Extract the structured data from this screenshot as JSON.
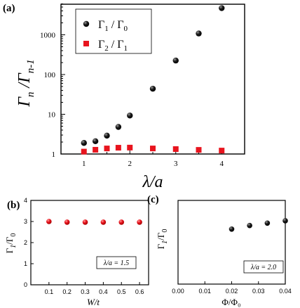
{
  "panel_labels": {
    "a": "(a)",
    "b": "(b)",
    "c": "(c)"
  },
  "colors": {
    "series1": "#000000",
    "series2": "#e8141e",
    "panel_b_marker": "#e8141e",
    "panel_c_marker": "#000000"
  },
  "chart_data": [
    {
      "type": "scatter",
      "id": "a",
      "xlabel": "λ/a",
      "ylabel": "Γn/Γn-1",
      "xscale": "linear",
      "yscale": "log",
      "xlim": [
        0.5,
        4.5
      ],
      "ylim": [
        1,
        6000
      ],
      "xticks": [
        "1",
        "2",
        "3",
        "4"
      ],
      "yticks": [
        "1",
        "10",
        "100",
        "1000"
      ],
      "legend_position": "top-left",
      "series": [
        {
          "name": "Γ1 / Γ0",
          "marker": "circle",
          "x": [
            1.0,
            1.25,
            1.5,
            1.75,
            2.0,
            2.5,
            3.0,
            3.5,
            4.0
          ],
          "y": [
            1.9,
            2.1,
            2.9,
            4.8,
            9.3,
            44,
            225,
            1080,
            4700
          ]
        },
        {
          "name": "Γ2 / Γ1",
          "marker": "square",
          "x": [
            1.0,
            1.25,
            1.5,
            1.75,
            2.0,
            2.5,
            3.0,
            3.5,
            4.0
          ],
          "y": [
            1.15,
            1.28,
            1.38,
            1.44,
            1.45,
            1.38,
            1.33,
            1.27,
            1.22
          ]
        }
      ]
    },
    {
      "type": "scatter",
      "id": "b",
      "xlabel": "W/t",
      "ylabel": "Γ1/Γ0",
      "xlim": [
        0,
        0.65
      ],
      "ylim": [
        0,
        4
      ],
      "xticks": [
        "0.1",
        "0.2",
        "0.3",
        "0.4",
        "0.5",
        "0.6"
      ],
      "yticks": [
        "0",
        "1",
        "2",
        "3",
        "4"
      ],
      "annotation": "λ/a = 1.5",
      "series": [
        {
          "marker": "circle",
          "x": [
            0.1,
            0.2,
            0.3,
            0.4,
            0.5,
            0.6
          ],
          "y": [
            3.0,
            2.97,
            2.97,
            2.97,
            2.97,
            2.97
          ]
        }
      ]
    },
    {
      "type": "scatter",
      "id": "c",
      "xlabel": "Φ/Φ₀",
      "ylabel": "Γ1/Γ0",
      "xlim": [
        0,
        0.04
      ],
      "ylim": [
        0,
        14
      ],
      "xticks": [
        "0.00",
        "0.01",
        "0.02",
        "0.03",
        "0.04"
      ],
      "yticks": [],
      "annotation": "λ/a = 2.0",
      "series": [
        {
          "marker": "circle",
          "x": [
            0.02,
            0.0267,
            0.0333,
            0.04
          ],
          "y": [
            9.2,
            9.8,
            10.2,
            10.6
          ]
        }
      ]
    }
  ]
}
